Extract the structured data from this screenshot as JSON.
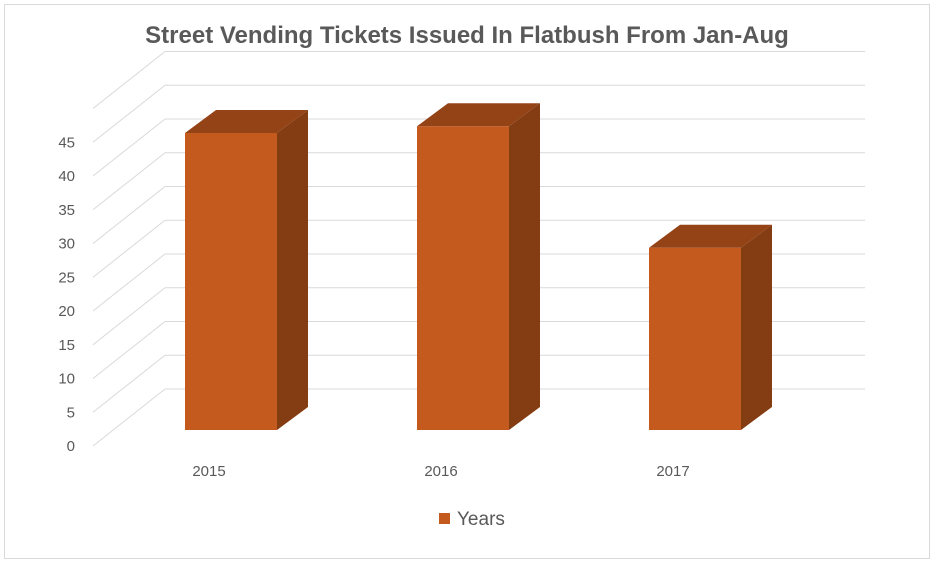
{
  "chart_data": {
    "type": "bar",
    "title": "Street Vending Tickets Issued In Flatbush From Jan-Aug",
    "categories": [
      "2015",
      "2016",
      "2017"
    ],
    "series": [
      {
        "name": "Years",
        "values": [
          44,
          45,
          27
        ]
      }
    ],
    "yticks": [
      "0",
      "5",
      "10",
      "15",
      "20",
      "25",
      "30",
      "35",
      "40",
      "45"
    ],
    "ylim": [
      0,
      50
    ],
    "grid": true,
    "legend": "bottom",
    "style": "3d-column",
    "colors": {
      "front": "#c55a1e",
      "side": "#843c12",
      "top": "#944317",
      "grid": "#d9d9d9"
    }
  }
}
